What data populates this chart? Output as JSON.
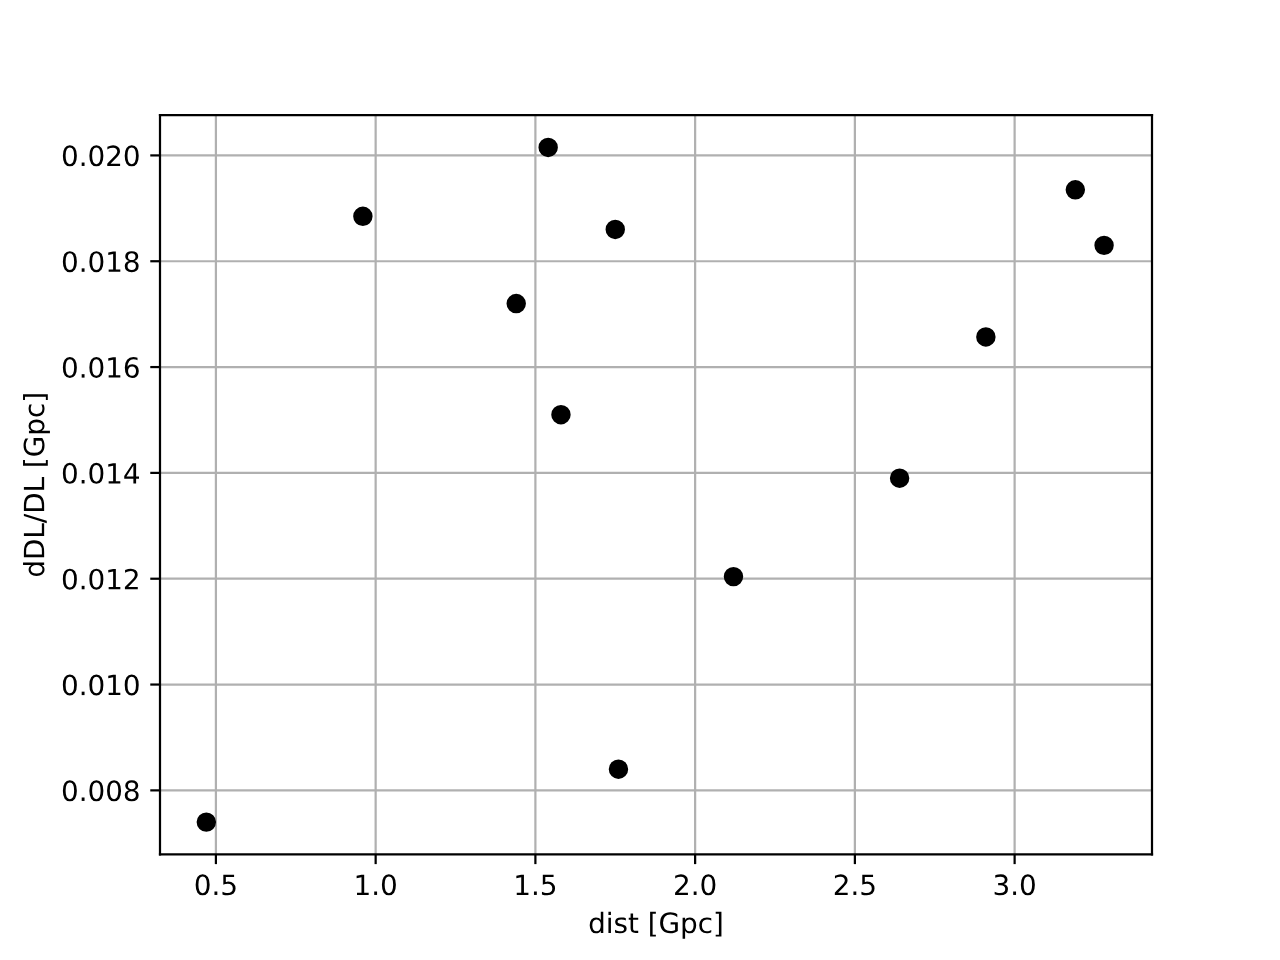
{
  "chart_data": {
    "type": "scatter",
    "xlabel": "dist [Gpc]",
    "ylabel": "dDL/DL [Gpc]",
    "x": [
      0.47,
      0.96,
      1.44,
      1.54,
      1.58,
      1.75,
      1.76,
      2.12,
      2.64,
      2.91,
      3.19,
      3.28
    ],
    "series": [
      {
        "color": "#000000",
        "values": [
          0.0074,
          0.01885,
          0.0172,
          0.02015,
          0.0151,
          0.0186,
          0.0084,
          0.01204,
          0.0139,
          0.01657,
          0.01935,
          0.0183
        ]
      }
    ],
    "xlim": [
      0.325,
      3.43
    ],
    "ylim": [
      0.00679,
      0.02076
    ],
    "xticks": [
      {
        "value": 0.5,
        "label": "0.5"
      },
      {
        "value": 1.0,
        "label": "1.0"
      },
      {
        "value": 1.5,
        "label": "1.5"
      },
      {
        "value": 2.0,
        "label": "2.0"
      },
      {
        "value": 2.5,
        "label": "2.5"
      },
      {
        "value": 3.0,
        "label": "3.0"
      }
    ],
    "yticks": [
      {
        "value": 0.008,
        "label": "0.008"
      },
      {
        "value": 0.01,
        "label": "0.010"
      },
      {
        "value": 0.012,
        "label": "0.012"
      },
      {
        "value": 0.014,
        "label": "0.014"
      },
      {
        "value": 0.016,
        "label": "0.016"
      },
      {
        "value": 0.018,
        "label": "0.018"
      },
      {
        "value": 0.02,
        "label": "0.020"
      }
    ],
    "grid": true,
    "marker": "circle"
  }
}
